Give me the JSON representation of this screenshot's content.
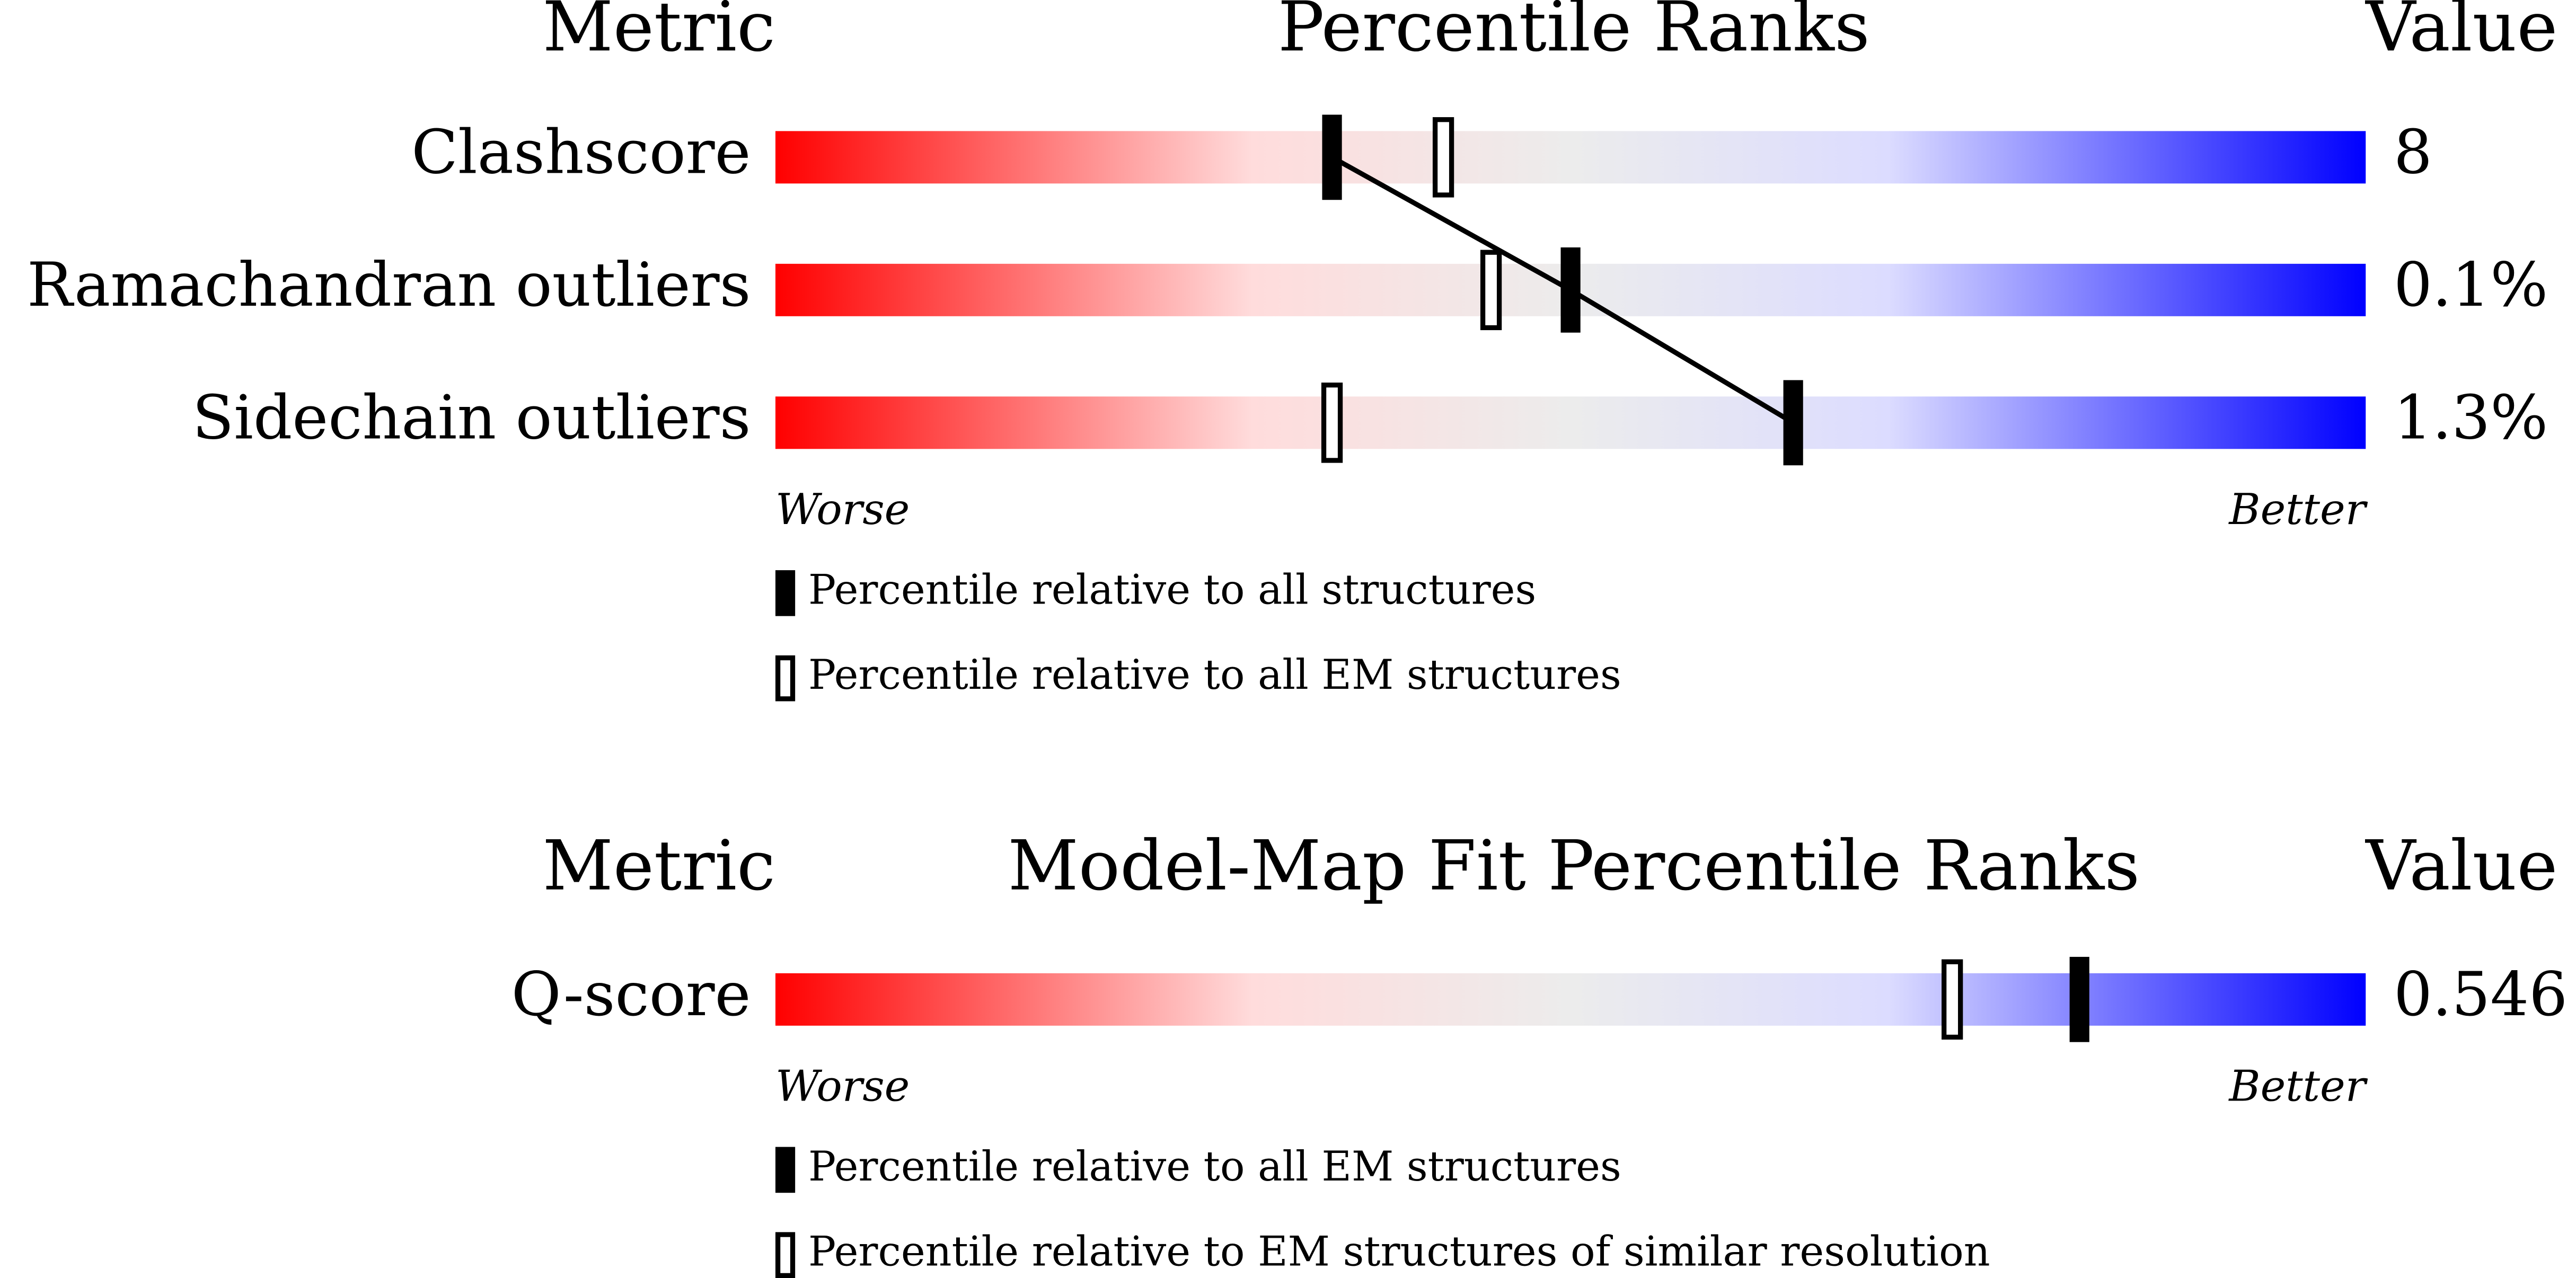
{
  "chart_data": [
    {
      "type": "percentile-slider",
      "metric_header": "Metric",
      "title": "Percentile Ranks",
      "value_header": "Value",
      "categories": [
        "Clashscore",
        "Ramachandran outliers",
        "Sidechain outliers"
      ],
      "metric_values": [
        "8",
        "0.1%",
        "1.3%"
      ],
      "xlim": [
        0,
        100
      ],
      "low_label": "Worse",
      "high_label": "Better",
      "series": [
        {
          "name": "Percentile relative to all structures",
          "style": "filled",
          "color": "#000000",
          "values": [
            35,
            50,
            64
          ]
        },
        {
          "name": "Percentile relative to all EM structures",
          "style": "hollow",
          "color": "#000000",
          "values": [
            42,
            45,
            35
          ]
        }
      ]
    },
    {
      "type": "percentile-slider",
      "metric_header": "Metric",
      "title": "Model-Map Fit Percentile Ranks",
      "value_header": "Value",
      "categories": [
        "Q-score"
      ],
      "metric_values": [
        "0.546"
      ],
      "xlim": [
        0,
        100
      ],
      "low_label": "Worse",
      "high_label": "Better",
      "series": [
        {
          "name": "Percentile relative to all EM structures",
          "style": "filled",
          "color": "#000000",
          "values": [
            82
          ]
        },
        {
          "name": "Percentile relative to EM structures of similar resolution",
          "style": "hollow",
          "color": "#000000",
          "values": [
            74
          ]
        }
      ]
    }
  ]
}
